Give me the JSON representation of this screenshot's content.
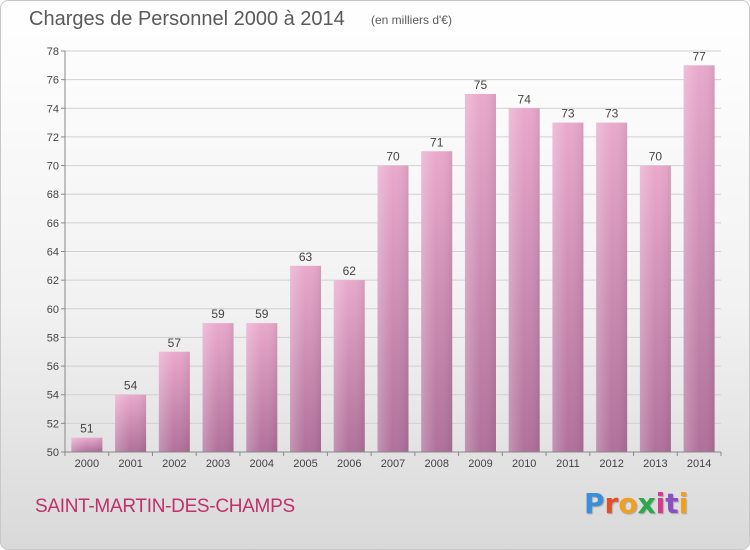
{
  "header": {
    "title": "Charges de Personnel 2000 à 2014",
    "subtitle": "(en milliers d'€)"
  },
  "footer": {
    "commune": "SAINT-MARTIN-DES-CHAMPS",
    "logo_text": "Proxiti",
    "logo_colors": [
      "#3a8fd8",
      "#e0502a",
      "#f0a020",
      "#2aa84a",
      "#d63a8e",
      "#8a4fc0",
      "#f0a020"
    ]
  },
  "colors": {
    "bar_top": "#e9a9cc",
    "bar_bottom": "#b0709a",
    "bar_shade": "#c68ab0",
    "axis": "#888888",
    "grid": "#d0d0d0",
    "text": "#444444"
  },
  "chart_data": {
    "type": "bar",
    "title": "Charges de Personnel 2000 à 2014",
    "subtitle": "(en milliers d'€)",
    "categories": [
      "2000",
      "2001",
      "2002",
      "2003",
      "2004",
      "2005",
      "2006",
      "2007",
      "2008",
      "2009",
      "2010",
      "2011",
      "2012",
      "2013",
      "2014"
    ],
    "values": [
      51,
      54,
      57,
      59,
      59,
      63,
      62,
      70,
      71,
      75,
      74,
      73,
      73,
      70,
      77
    ],
    "ylim": [
      50,
      78
    ],
    "yticks": [
      50,
      52,
      54,
      56,
      58,
      60,
      62,
      64,
      66,
      68,
      70,
      72,
      74,
      76,
      78
    ],
    "grid": true,
    "data_labels": true
  }
}
